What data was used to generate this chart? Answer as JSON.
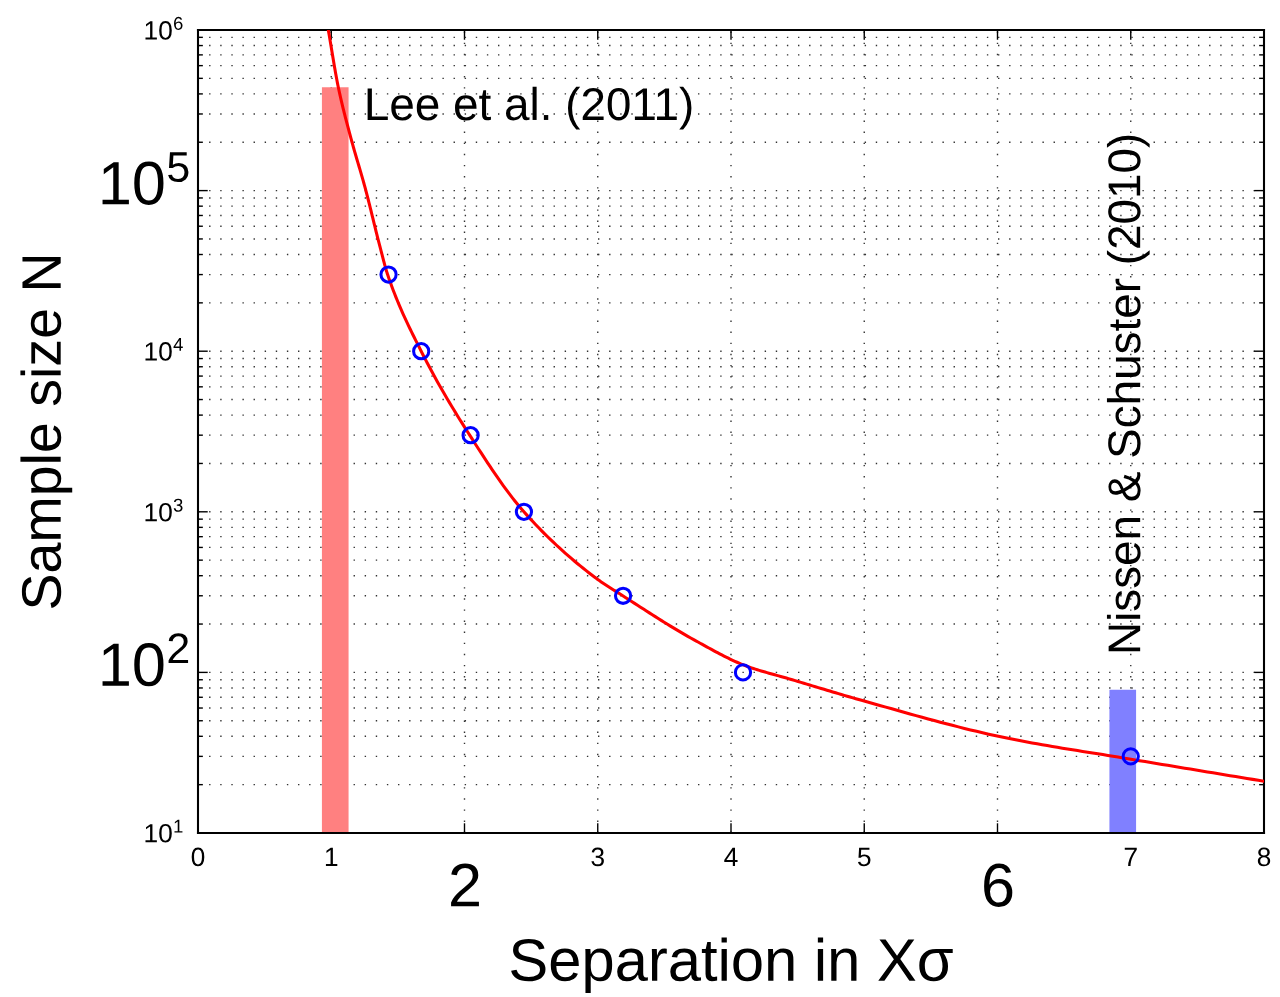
{
  "chart_data": {
    "type": "line",
    "xlabel": "Separation in Xσ",
    "ylabel": "Sample size N",
    "log": "y",
    "grid": true,
    "xlim": [
      0,
      8
    ],
    "ylim": [
      10,
      1000000
    ],
    "xticks": [
      0,
      1,
      {
        "value": 2,
        "label": null
      },
      3,
      4,
      5,
      {
        "value": 6,
        "label": null
      },
      7,
      8
    ],
    "yticks": [
      {
        "value": 10,
        "label": "10$^{1}$"
      },
      {
        "value": 100,
        "label": null
      },
      {
        "value": 1000,
        "label": "10$^{3}$"
      },
      {
        "value": 10000,
        "label": "10$^{4}$"
      },
      {
        "value": 100000,
        "label": null
      },
      {
        "value": 1000000,
        "label": "10$^{6}$"
      }
    ],
    "annotations": [
      "10$^{5}$",
      "10$^{2}$",
      "2",
      "6"
    ],
    "series": [
      {
        "type": "bar",
        "name": "Lee et al. (2011)",
        "x": [
          1.03
        ],
        "values": [
          440000
        ],
        "color": "#ff8080"
      },
      {
        "type": "bar",
        "name": "Nissen & Schuster (2010)",
        "x": [
          6.94
        ],
        "values": [
          78
        ],
        "color": "#8080ff"
      },
      {
        "color": "#ff0000",
        "line_style": "solid",
        "marker": "none",
        "x": [
          0.978,
          1.053,
          1.149,
          1.253,
          1.371,
          1.423,
          1.675,
          2.039,
          2.446,
          2.98,
          3.188,
          3.72,
          4.11,
          4.46,
          4.98,
          6.07,
          6.98,
          8.0
        ],
        "values": [
          1000000,
          440000,
          210000,
          105000,
          43000,
          30000,
          10000,
          3000,
          1000,
          390,
          300,
          160,
          110,
          90,
          67,
          39,
          29,
          21
        ]
      },
      {
        "type": "scatter",
        "color": "#0000ff",
        "marker": "circle",
        "x": [
          1.43,
          1.675,
          2.046,
          2.446,
          3.19,
          4.09,
          7.0
        ],
        "values": [
          30000,
          10000,
          3000,
          1000,
          300,
          100,
          30
        ]
      }
    ]
  }
}
